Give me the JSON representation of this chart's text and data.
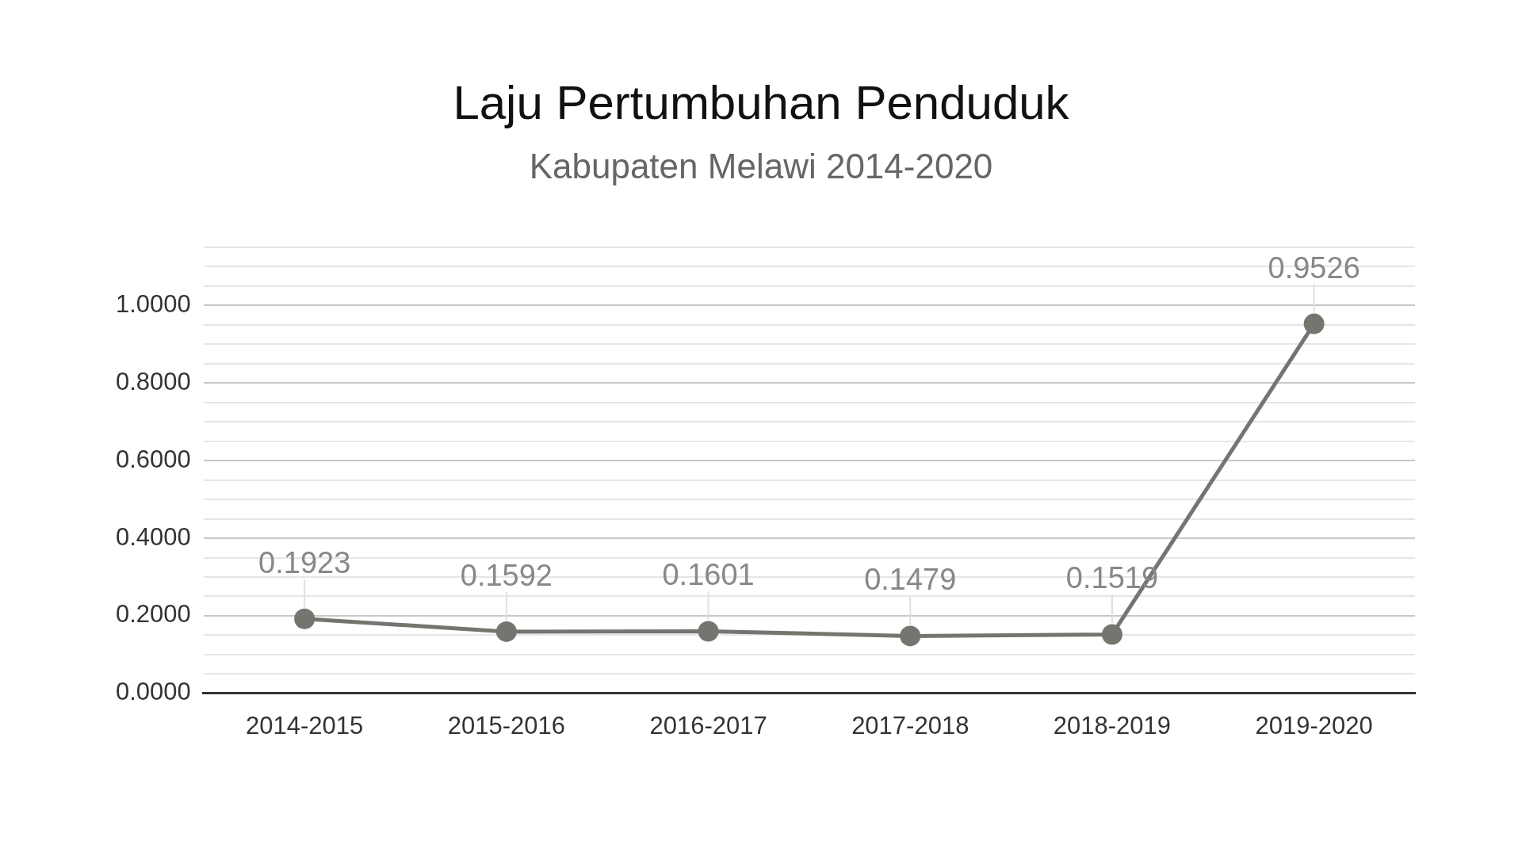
{
  "chart_data": {
    "type": "line",
    "title": "Laju Pertumbuhan Penduduk",
    "subtitle": "Kabupaten Melawi 2014-2020",
    "categories": [
      "2014-2015",
      "2015-2016",
      "2016-2017",
      "2017-2018",
      "2018-2019",
      "2019-2020"
    ],
    "values": [
      0.1923,
      0.1592,
      0.1601,
      0.1479,
      0.1519,
      0.9526
    ],
    "color": "#757570",
    "ylim": [
      0,
      1.15
    ],
    "yticks": [
      {
        "value": 0,
        "label": "0.0000"
      },
      {
        "value": 0.05,
        "label": null
      },
      {
        "value": 0.1,
        "label": null
      },
      {
        "value": 0.15,
        "label": null
      },
      {
        "value": 0.2,
        "label": "0.2000"
      },
      {
        "value": 0.25,
        "label": null
      },
      {
        "value": 0.3,
        "label": null
      },
      {
        "value": 0.35,
        "label": null
      },
      {
        "value": 0.4,
        "label": "0.4000"
      },
      {
        "value": 0.45,
        "label": null
      },
      {
        "value": 0.5,
        "label": null
      },
      {
        "value": 0.55,
        "label": null
      },
      {
        "value": 0.6,
        "label": "0.6000"
      },
      {
        "value": 0.65,
        "label": null
      },
      {
        "value": 0.7,
        "label": null
      },
      {
        "value": 0.75,
        "label": null
      },
      {
        "value": 0.8,
        "label": "0.8000"
      },
      {
        "value": 0.85,
        "label": null
      },
      {
        "value": 0.9,
        "label": null
      },
      {
        "value": 0.95,
        "label": null
      },
      {
        "value": 1,
        "label": "1.0000"
      },
      {
        "value": 1.05,
        "label": null
      },
      {
        "value": 1.1,
        "label": null
      },
      {
        "value": 1.15,
        "label": null
      }
    ],
    "grid": true,
    "legend": false,
    "marker": "circle",
    "line_style": "solid",
    "data_labels": true
  }
}
